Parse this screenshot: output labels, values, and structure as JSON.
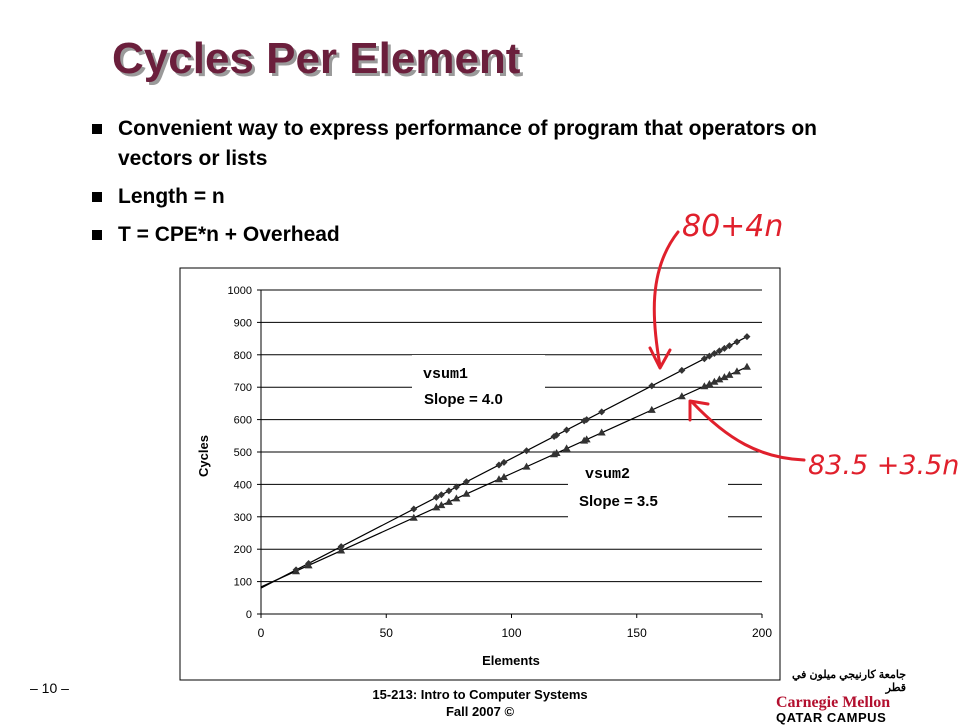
{
  "slide": {
    "title": "Cycles Per Element",
    "bullets": [
      "Convenient way to express performance of program that operators on vectors or lists",
      "Length = n",
      "T = CPE*n + Overhead"
    ],
    "page_number": "– 10 –",
    "course": "15-213: Intro to Computer Systems",
    "term": "Fall 2007 ©",
    "logo": {
      "arabic": "جامعة كارنيجي ميلون في قطر",
      "line1": "Carnegie Mellon",
      "line2": "QATAR CAMPUS",
      "color": "#b3102f"
    }
  },
  "annotations": {
    "upper": "80+4n",
    "lower": "83.5 +3.5n",
    "color": "#e0202c"
  },
  "chart_data": {
    "type": "scatter",
    "xlabel": "Elements",
    "ylabel": "Cycles",
    "xlim": [
      0,
      200
    ],
    "ylim": [
      0,
      1000
    ],
    "xticks": [
      0,
      50,
      100,
      150,
      200
    ],
    "yticks": [
      0,
      100,
      200,
      300,
      400,
      500,
      600,
      700,
      800,
      900,
      1000
    ],
    "grid": "horizontal",
    "series": [
      {
        "name": "vsum1",
        "label": "Slope = 4.0",
        "marker": "diamond",
        "trendline": {
          "slope": 4.0,
          "intercept": 80
        },
        "x": [
          14,
          19,
          32,
          61,
          70,
          72,
          75,
          78,
          82,
          95,
          97,
          106,
          117,
          118,
          122,
          129,
          130,
          136,
          156,
          168,
          177,
          179,
          181,
          183,
          185,
          187,
          190,
          194
        ],
        "y": [
          136,
          156,
          208,
          324,
          360,
          368,
          380,
          392,
          408,
          460,
          468,
          504,
          548,
          552,
          568,
          596,
          600,
          624,
          704,
          752,
          788,
          796,
          804,
          812,
          820,
          828,
          840,
          856
        ]
      },
      {
        "name": "vsum2",
        "label": "Slope = 3.5",
        "marker": "triangle",
        "trendline": {
          "slope": 3.5,
          "intercept": 83.5
        },
        "x": [
          14,
          19,
          32,
          61,
          70,
          72,
          75,
          78,
          82,
          95,
          97,
          106,
          117,
          118,
          122,
          129,
          130,
          136,
          156,
          168,
          177,
          179,
          181,
          183,
          185,
          187,
          190,
          194
        ],
        "y": [
          132,
          150,
          196,
          297,
          329,
          336,
          346,
          357,
          371,
          416,
          423,
          455,
          493,
          497,
          511,
          535,
          539,
          560,
          630,
          672,
          703,
          710,
          717,
          724,
          731,
          738,
          749,
          763
        ]
      }
    ]
  }
}
